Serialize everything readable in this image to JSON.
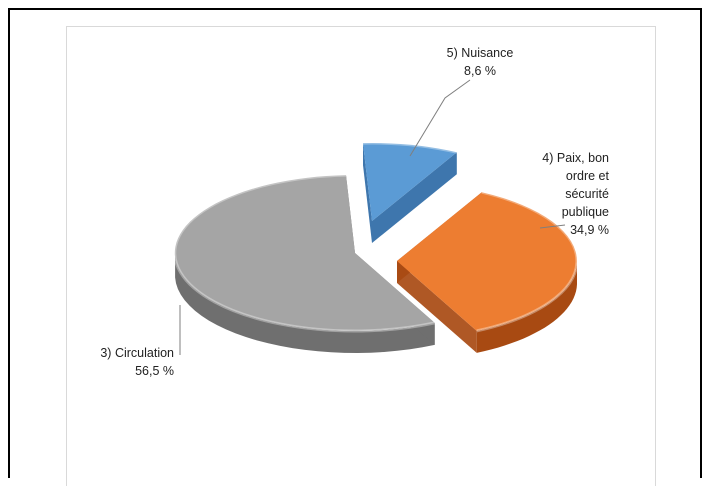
{
  "chart_data": {
    "type": "pie",
    "title": "",
    "slices": [
      {
        "name": "5) Nuisance",
        "value_label": "8,6 %",
        "value": 8.6,
        "color": "#5b9bd5",
        "side_color": "#2e6aa6"
      },
      {
        "name": "4) Paix, bon ordre et sécurité publique",
        "name_lines": [
          "4) Paix, bon",
          "ordre et",
          "sécurité",
          "publique"
        ],
        "value_label": "34,9 %",
        "value": 34.9,
        "color": "#ed7d31",
        "side_color": "#a84a12"
      },
      {
        "name": "3) Circulation",
        "value_label": "56,5 %",
        "value": 56.5,
        "color": "#a5a5a5",
        "side_color": "#6f6f6f"
      }
    ],
    "style": "3d-exploded",
    "legend": "none"
  }
}
